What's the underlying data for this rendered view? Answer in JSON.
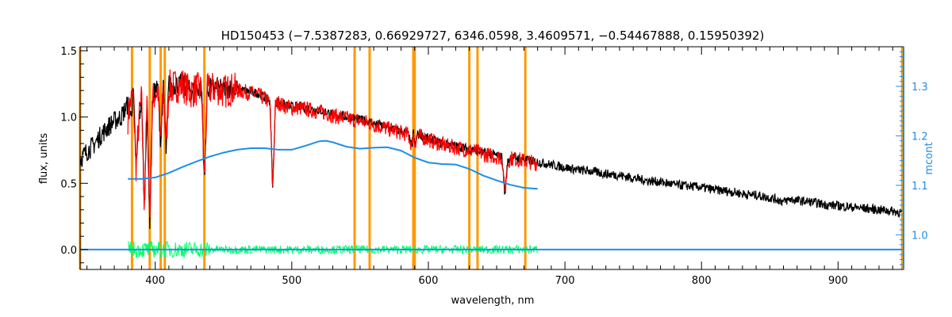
{
  "chart_data": {
    "type": "line",
    "title": "HD150453    (−7.5387283, 0.66929727, 6346.0598, 3.4609571, −0.54467888, 0.15950392)",
    "xlabel": "wavelength, nm",
    "ylabel": "flux, units",
    "y2label": "mcont",
    "xlim": [
      345,
      948
    ],
    "ylim": [
      -0.15,
      1.53
    ],
    "y2lim": [
      0.93,
      1.38
    ],
    "xticks": [
      400,
      500,
      600,
      700,
      800,
      900
    ],
    "yticks": [
      0.0,
      0.5,
      1.0,
      1.5
    ],
    "y2ticks": [
      1.0,
      1.1,
      1.2,
      1.3
    ],
    "xtick_labels": [
      "400",
      "500",
      "600",
      "700",
      "800",
      "900"
    ],
    "ytick_labels": [
      "0.0",
      "0.5",
      "1.0",
      "1.5"
    ],
    "y2tick_labels": [
      "1.0",
      "1.1",
      "1.2",
      "1.3"
    ],
    "vlines": [
      345,
      383,
      396,
      404,
      407,
      436,
      546,
      557,
      589,
      590,
      630,
      636,
      671,
      947
    ],
    "colors": {
      "observed": "#000000",
      "model": "#ff0000",
      "continuum": "#1f8ee8",
      "residual": "#00ff66",
      "vlines": "#ff9900",
      "axes": "#000000",
      "right_axis": "#1f8ee8"
    },
    "series": [
      {
        "key": "observed",
        "axis": "left",
        "x": [
          345,
          350,
          355,
          360,
          365,
          370,
          375,
          378,
          380,
          382,
          384,
          386,
          388,
          390,
          392,
          394,
          396,
          398,
          400,
          402,
          404,
          406,
          408,
          410,
          412,
          415,
          418,
          420,
          423,
          426,
          430,
          434,
          436,
          438,
          440,
          445,
          450,
          455,
          460,
          465,
          470,
          475,
          480,
          484,
          486,
          488,
          490,
          495,
          500,
          505,
          510,
          515,
          520,
          525,
          530,
          535,
          540,
          545,
          550,
          555,
          560,
          565,
          570,
          575,
          580,
          585,
          588,
          589,
          590,
          592,
          595,
          600,
          605,
          610,
          615,
          620,
          625,
          630,
          635,
          640,
          645,
          650,
          654,
          656,
          658,
          660,
          665,
          670,
          675,
          680,
          690,
          700,
          710,
          720,
          730,
          740,
          750,
          760,
          770,
          780,
          790,
          800,
          810,
          820,
          830,
          840,
          850,
          855,
          860,
          865,
          870,
          880,
          890,
          900,
          910,
          920,
          930,
          940,
          947
        ],
        "y": [
          0.68,
          0.74,
          0.79,
          0.86,
          0.92,
          0.97,
          1.0,
          1.06,
          1.1,
          1.0,
          1.18,
          0.6,
          0.95,
          1.15,
          0.3,
          1.1,
          0.2,
          1.15,
          1.2,
          1.22,
          0.8,
          1.24,
          0.75,
          1.26,
          1.22,
          1.25,
          1.24,
          1.26,
          1.22,
          1.2,
          1.22,
          1.21,
          0.5,
          1.2,
          1.22,
          1.23,
          1.2,
          1.22,
          1.21,
          1.2,
          1.19,
          1.18,
          1.15,
          1.12,
          0.45,
          1.1,
          1.12,
          1.09,
          1.08,
          1.08,
          1.07,
          1.06,
          1.05,
          1.04,
          1.02,
          1.01,
          1.0,
          0.99,
          0.98,
          0.97,
          0.95,
          0.94,
          0.92,
          0.91,
          0.89,
          0.88,
          0.76,
          0.9,
          0.78,
          0.87,
          0.86,
          0.84,
          0.82,
          0.8,
          0.79,
          0.78,
          0.77,
          0.76,
          0.75,
          0.73,
          0.72,
          0.71,
          0.7,
          0.4,
          0.66,
          0.7,
          0.69,
          0.68,
          0.67,
          0.66,
          0.64,
          0.62,
          0.6,
          0.59,
          0.57,
          0.56,
          0.54,
          0.52,
          0.51,
          0.49,
          0.48,
          0.47,
          0.45,
          0.44,
          0.42,
          0.41,
          0.39,
          0.38,
          0.36,
          0.38,
          0.37,
          0.36,
          0.34,
          0.33,
          0.32,
          0.31,
          0.3,
          0.29,
          0.28
        ]
      },
      {
        "key": "model",
        "axis": "left",
        "x": [
          380,
          382,
          384,
          386,
          388,
          390,
          392,
          394,
          396,
          398,
          400,
          402,
          404,
          406,
          408,
          410,
          412,
          415,
          418,
          420,
          423,
          426,
          430,
          434,
          436,
          438,
          440,
          445,
          450,
          455,
          460,
          465,
          470,
          475,
          480,
          484,
          486,
          488,
          490,
          495,
          500,
          505,
          510,
          515,
          520,
          525,
          530,
          535,
          540,
          545,
          550,
          555,
          560,
          565,
          570,
          575,
          580,
          585,
          588,
          589,
          590,
          592,
          595,
          600,
          605,
          610,
          615,
          620,
          625,
          630,
          635,
          640,
          645,
          650,
          654,
          656,
          658,
          660,
          665,
          670,
          675,
          680
        ],
        "y": [
          1.0,
          1.12,
          1.15,
          0.62,
          0.97,
          1.14,
          0.35,
          1.1,
          0.22,
          1.13,
          1.18,
          1.2,
          0.82,
          1.22,
          0.78,
          1.24,
          1.21,
          1.24,
          1.23,
          1.25,
          1.21,
          1.19,
          1.21,
          1.2,
          0.52,
          1.19,
          1.21,
          1.22,
          1.19,
          1.21,
          1.2,
          1.19,
          1.18,
          1.17,
          1.14,
          1.11,
          0.47,
          1.09,
          1.11,
          1.08,
          1.07,
          1.07,
          1.06,
          1.05,
          1.04,
          1.03,
          1.01,
          1.0,
          0.99,
          0.98,
          0.97,
          0.96,
          0.94,
          0.93,
          0.91,
          0.9,
          0.88,
          0.87,
          0.78,
          0.89,
          0.8,
          0.86,
          0.85,
          0.83,
          0.81,
          0.79,
          0.78,
          0.77,
          0.76,
          0.75,
          0.74,
          0.72,
          0.71,
          0.7,
          0.69,
          0.42,
          0.65,
          0.69,
          0.68,
          0.67,
          0.66,
          0.65
        ]
      },
      {
        "key": "continuum",
        "axis": "right",
        "x": [
          380,
          390,
          400,
          410,
          420,
          430,
          440,
          450,
          460,
          470,
          480,
          490,
          500,
          510,
          520,
          525,
          530,
          540,
          550,
          560,
          570,
          580,
          590,
          600,
          610,
          620,
          630,
          640,
          650,
          660,
          670,
          680
        ],
        "y": [
          1.113,
          1.113,
          1.116,
          1.125,
          1.137,
          1.148,
          1.158,
          1.166,
          1.172,
          1.175,
          1.175,
          1.172,
          1.172,
          1.18,
          1.189,
          1.19,
          1.187,
          1.178,
          1.174,
          1.176,
          1.177,
          1.17,
          1.156,
          1.146,
          1.143,
          1.142,
          1.133,
          1.12,
          1.11,
          1.101,
          1.095,
          1.093
        ]
      },
      {
        "key": "continuum_residual_baseline",
        "axis": "left",
        "x": [
          345,
          947
        ],
        "y": [
          0.0,
          0.0
        ]
      }
    ],
    "residual_range": {
      "x": [
        380,
        680
      ],
      "y_amplitude": 0.08
    }
  }
}
